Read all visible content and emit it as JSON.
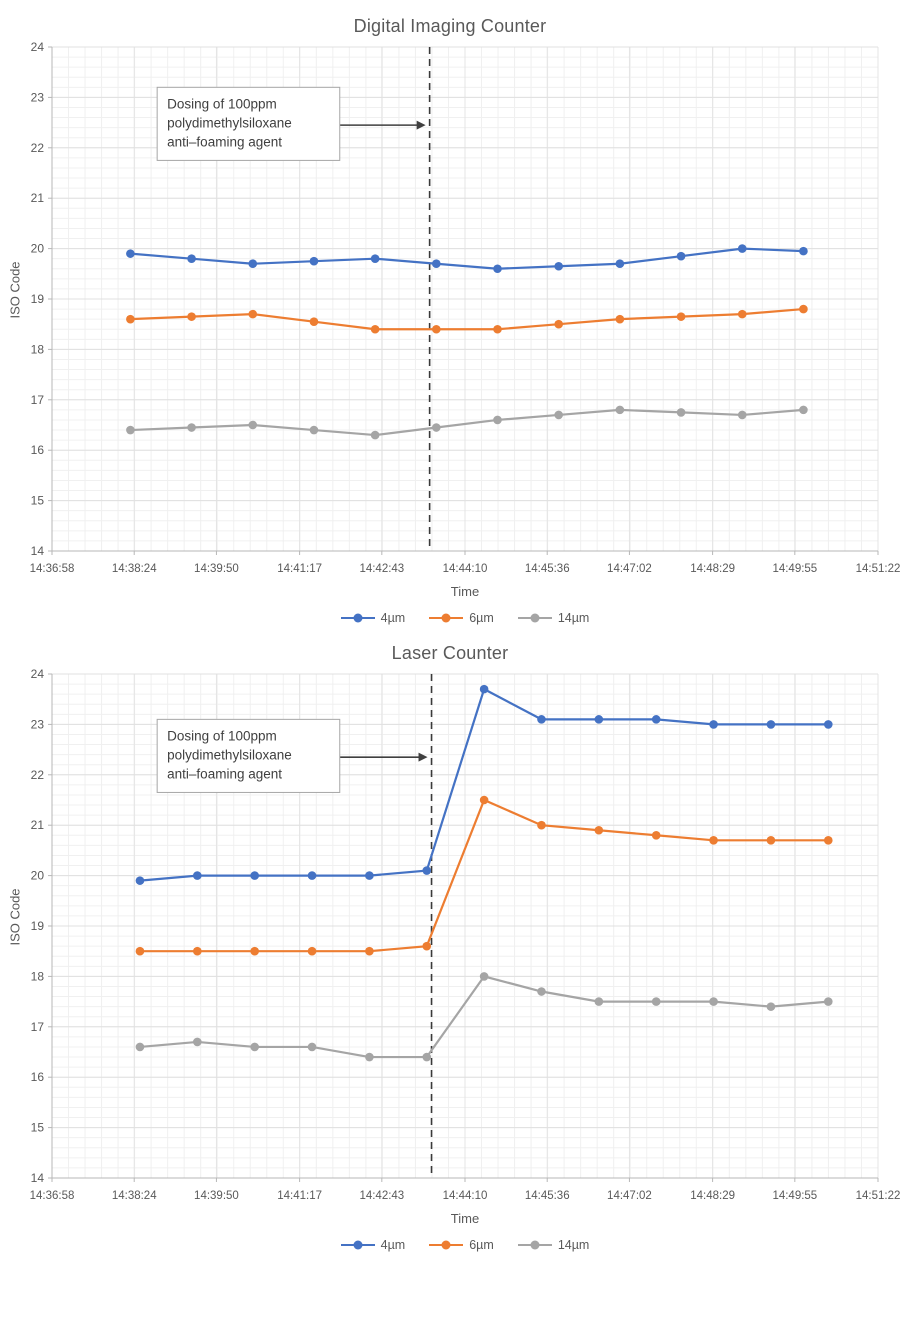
{
  "chart_data": [
    {
      "type": "line",
      "title": "Digital Imaging Counter",
      "xlabel": "Time",
      "ylabel": "ISO Code",
      "ylim": [
        14,
        24
      ],
      "ytick_step": 1,
      "grid": true,
      "legend_position": "bottom",
      "x_ticks": [
        "14:36:58",
        "14:38:24",
        "14:39:50",
        "14:41:17",
        "14:42:43",
        "14:44:10",
        "14:45:36",
        "14:47:02",
        "14:48:29",
        "14:49:55",
        "14:51:22"
      ],
      "x": [
        "14:38:20",
        "14:39:24",
        "14:40:28",
        "14:41:32",
        "14:42:36",
        "14:43:40",
        "14:44:44",
        "14:45:48",
        "14:46:52",
        "14:47:56",
        "14:49:00",
        "14:50:04"
      ],
      "series": [
        {
          "name": "4µm",
          "color": "#4472C4",
          "values": [
            19.9,
            19.8,
            19.7,
            19.75,
            19.8,
            19.7,
            19.6,
            19.65,
            19.7,
            19.85,
            20.0,
            19.95
          ]
        },
        {
          "name": "6µm",
          "color": "#ED7D31",
          "values": [
            18.6,
            18.65,
            18.7,
            18.55,
            18.4,
            18.4,
            18.4,
            18.5,
            18.6,
            18.65,
            18.7,
            18.8
          ]
        },
        {
          "name": "14µm",
          "color": "#A5A5A5",
          "values": [
            16.4,
            16.45,
            16.5,
            16.4,
            16.3,
            16.45,
            16.6,
            16.7,
            16.8,
            16.75,
            16.7,
            16.8
          ]
        }
      ],
      "dosing_line": {
        "time": "14:43:33",
        "color": "#3a3a3a",
        "style": "dashed"
      },
      "annotation": {
        "lines": [
          "Dosing of 100ppm",
          "polydimethylsiloxane",
          "anti–foaming agent"
        ],
        "box_left_time": "14:38:48",
        "box_right_time": "14:41:59",
        "box_top_iso": 23.2,
        "box_bottom_iso": 21.75,
        "arrow_iso": 22.45
      }
    },
    {
      "type": "line",
      "title": "Laser Counter",
      "xlabel": "Time",
      "ylabel": "ISO Code",
      "ylim": [
        14,
        24
      ],
      "ytick_step": 1,
      "grid": true,
      "legend_position": "bottom",
      "x_ticks": [
        "14:36:58",
        "14:38:24",
        "14:39:50",
        "14:41:17",
        "14:42:43",
        "14:44:10",
        "14:45:36",
        "14:47:02",
        "14:48:29",
        "14:49:55",
        "14:51:22"
      ],
      "x": [
        "14:38:30",
        "14:39:30",
        "14:40:30",
        "14:41:30",
        "14:42:30",
        "14:43:30",
        "14:44:30",
        "14:45:30",
        "14:46:30",
        "14:47:30",
        "14:48:30",
        "14:49:30",
        "14:50:30"
      ],
      "series": [
        {
          "name": "4µm",
          "color": "#4472C4",
          "values": [
            19.9,
            20.0,
            20.0,
            20.0,
            20.0,
            20.1,
            23.7,
            23.1,
            23.1,
            23.1,
            23.0,
            23.0,
            23.0
          ]
        },
        {
          "name": "6µm",
          "color": "#ED7D31",
          "values": [
            18.5,
            18.5,
            18.5,
            18.5,
            18.5,
            18.6,
            21.5,
            21.0,
            20.9,
            20.8,
            20.7,
            20.7,
            20.7
          ]
        },
        {
          "name": "14µm",
          "color": "#A5A5A5",
          "values": [
            16.6,
            16.7,
            16.6,
            16.6,
            16.4,
            16.4,
            18.0,
            17.7,
            17.5,
            17.5,
            17.5,
            17.4,
            17.5
          ]
        }
      ],
      "dosing_line": {
        "time": "14:43:35",
        "color": "#3a3a3a",
        "style": "dashed"
      },
      "annotation": {
        "lines": [
          "Dosing of 100ppm",
          "polydimethylsiloxane",
          "anti–foaming agent"
        ],
        "box_left_time": "14:38:48",
        "box_right_time": "14:41:59",
        "box_top_iso": 23.1,
        "box_bottom_iso": 21.65,
        "arrow_iso": 22.35
      }
    }
  ]
}
